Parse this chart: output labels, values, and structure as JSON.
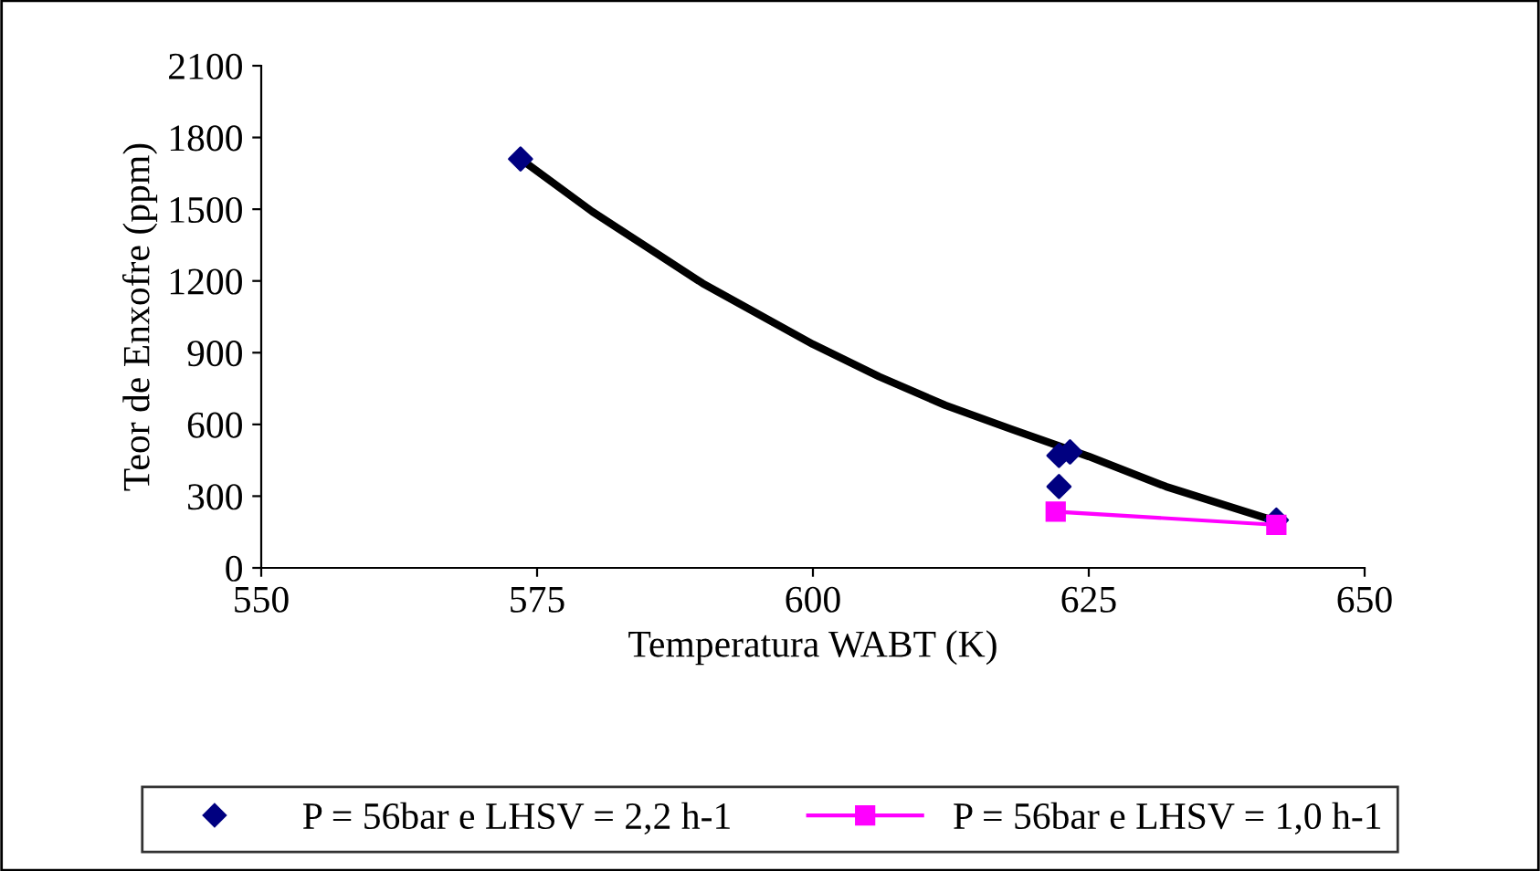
{
  "chart_data": {
    "type": "scatter",
    "xlabel": "Temperatura WABT (K)",
    "ylabel": "Teor de Enxofre (ppm)",
    "xlim": [
      550,
      650
    ],
    "xticks": [
      550,
      575,
      600,
      625,
      650
    ],
    "ylim": [
      0,
      2100
    ],
    "yticks": [
      0,
      300,
      600,
      900,
      1200,
      1500,
      1800,
      2100
    ],
    "grid": false,
    "legend": "bottom",
    "series": [
      {
        "name": "P = 56bar e LHSV = 2,2 h-1",
        "marker": "diamond",
        "color": "#000080",
        "x": [
          573.5,
          622.3,
          623.3,
          622.3,
          642
        ],
        "values": [
          1710,
          470,
          485,
          340,
          200
        ]
      },
      {
        "name": "P = 56bar e LHSV = 1,0 h-1",
        "type": "line",
        "marker": "square",
        "color": "#ff00ff",
        "x": [
          622,
          642
        ],
        "values": [
          235,
          180
        ]
      },
      {
        "type": "line",
        "marker": "none",
        "color": "#000000",
        "x": [
          573.5,
          580,
          585,
          590,
          600,
          606,
          612,
          618,
          625,
          632,
          642
        ],
        "values": [
          1710,
          1490,
          1340,
          1190,
          935,
          800,
          680,
          580,
          466,
          340,
          195
        ]
      }
    ]
  }
}
